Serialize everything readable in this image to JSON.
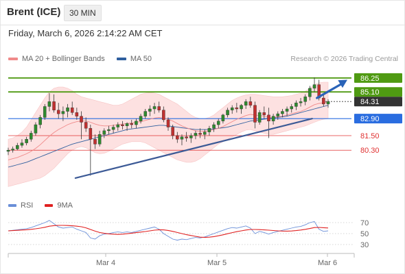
{
  "header": {
    "instrument": "Brent (ICE)",
    "timeframe": "30 MIN"
  },
  "timestamp": "Friday, March 6, 2026 2:14:22 AM CET",
  "legend": {
    "main": [
      {
        "label": "MA 20 + Bollinger Bands",
        "color": "#f08a8a"
      },
      {
        "label": "MA 50",
        "color": "#2e5e9e"
      }
    ],
    "rsi": [
      {
        "label": "RSI",
        "color": "#6a8fd8"
      },
      {
        "label": "9MA",
        "color": "#e02020"
      }
    ]
  },
  "credit": "Research © 2026 Trading Central",
  "chart_data": {
    "type": "candlestick",
    "y_range": [
      76.7,
      87.2
    ],
    "x_labels": [
      "Mar 4",
      "Mar 5",
      "Mar 6"
    ],
    "levels": [
      {
        "label": "86.25",
        "value": 86.25,
        "kind": "resistance",
        "color": "#4f9a12"
      },
      {
        "label": "85.10",
        "value": 85.1,
        "kind": "resistance",
        "color": "#4f9a12"
      },
      {
        "label": "84.31",
        "value": 84.31,
        "kind": "last",
        "color": "#333333"
      },
      {
        "label": "82.90",
        "value": 82.9,
        "kind": "pivot",
        "color": "#2a6de0"
      },
      {
        "label": "81.50",
        "value": 81.5,
        "kind": "support",
        "color": "#e03030"
      },
      {
        "label": "80.30",
        "value": 80.3,
        "kind": "support",
        "color": "#e03030"
      }
    ],
    "candles": [
      [
        80.2,
        80.5,
        79.9,
        80.3
      ],
      [
        80.3,
        80.6,
        80.1,
        80.4
      ],
      [
        80.4,
        80.9,
        80.3,
        80.7
      ],
      [
        80.7,
        81.2,
        80.5,
        80.9
      ],
      [
        80.9,
        81.4,
        80.7,
        81.2
      ],
      [
        81.2,
        81.9,
        81.0,
        81.7
      ],
      [
        81.7,
        82.6,
        81.5,
        82.4
      ],
      [
        82.4,
        83.2,
        82.1,
        83.0
      ],
      [
        83.0,
        84.1,
        82.8,
        83.9
      ],
      [
        83.9,
        85.0,
        83.5,
        84.3
      ],
      [
        84.3,
        84.9,
        83.4,
        83.6
      ],
      [
        83.6,
        84.2,
        82.9,
        83.3
      ],
      [
        83.3,
        83.9,
        82.7,
        83.5
      ],
      [
        83.5,
        84.1,
        83.0,
        83.8
      ],
      [
        83.8,
        84.3,
        83.2,
        83.4
      ],
      [
        83.4,
        83.8,
        82.8,
        83.1
      ],
      [
        83.1,
        83.5,
        81.2,
        82.6
      ],
      [
        82.6,
        83.0,
        81.8,
        82.1
      ],
      [
        82.1,
        82.4,
        78.2,
        81.2
      ],
      [
        81.2,
        81.6,
        80.4,
        80.8
      ],
      [
        80.8,
        81.9,
        80.6,
        81.6
      ],
      [
        81.6,
        82.1,
        81.3,
        81.9
      ],
      [
        81.9,
        82.3,
        81.6,
        82.0
      ],
      [
        82.0,
        82.4,
        81.7,
        82.2
      ],
      [
        82.2,
        82.6,
        81.9,
        82.4
      ],
      [
        82.4,
        82.7,
        82.0,
        82.3
      ],
      [
        82.3,
        82.6,
        81.9,
        82.5
      ],
      [
        82.5,
        82.8,
        82.1,
        82.4
      ],
      [
        82.4,
        82.9,
        82.1,
        82.7
      ],
      [
        82.7,
        83.3,
        82.5,
        83.1
      ],
      [
        83.1,
        83.7,
        82.9,
        83.5
      ],
      [
        83.5,
        84.0,
        83.1,
        83.7
      ],
      [
        83.7,
        84.2,
        83.3,
        83.9
      ],
      [
        83.9,
        84.3,
        83.4,
        83.6
      ],
      [
        83.6,
        83.9,
        82.6,
        82.8
      ],
      [
        82.8,
        83.0,
        81.9,
        82.2
      ],
      [
        82.2,
        82.4,
        81.2,
        81.5
      ],
      [
        81.5,
        81.8,
        80.9,
        81.2
      ],
      [
        81.2,
        81.6,
        80.7,
        81.4
      ],
      [
        81.4,
        81.8,
        81.0,
        81.3
      ],
      [
        81.3,
        81.7,
        80.9,
        81.5
      ],
      [
        81.5,
        81.9,
        81.2,
        81.7
      ],
      [
        81.7,
        82.1,
        81.3,
        81.6
      ],
      [
        81.6,
        82.0,
        81.2,
        81.8
      ],
      [
        81.8,
        82.3,
        81.5,
        82.1
      ],
      [
        82.1,
        82.6,
        81.8,
        82.4
      ],
      [
        82.4,
        82.9,
        82.1,
        82.7
      ],
      [
        82.7,
        83.3,
        82.5,
        83.2
      ],
      [
        83.2,
        83.8,
        83.0,
        83.6
      ],
      [
        83.6,
        84.0,
        83.3,
        83.8
      ],
      [
        83.8,
        84.2,
        83.4,
        83.7
      ],
      [
        83.7,
        84.1,
        83.3,
        84.0
      ],
      [
        84.0,
        84.5,
        83.7,
        84.3
      ],
      [
        84.3,
        84.7,
        83.8,
        84.0
      ],
      [
        84.0,
        84.3,
        82.1,
        82.6
      ],
      [
        82.6,
        83.6,
        82.4,
        83.4
      ],
      [
        83.4,
        83.9,
        82.9,
        83.2
      ],
      [
        83.2,
        83.8,
        81.3,
        82.7
      ],
      [
        82.7,
        83.3,
        82.4,
        83.1
      ],
      [
        83.1,
        83.5,
        82.8,
        83.3
      ],
      [
        83.3,
        83.7,
        83.0,
        83.5
      ],
      [
        83.5,
        83.9,
        83.1,
        83.7
      ],
      [
        83.7,
        84.1,
        83.4,
        83.9
      ],
      [
        83.9,
        84.4,
        83.6,
        84.2
      ],
      [
        84.2,
        84.6,
        83.9,
        84.3
      ],
      [
        84.3,
        84.9,
        84.0,
        84.7
      ],
      [
        84.7,
        85.6,
        84.4,
        85.4
      ],
      [
        85.4,
        86.3,
        85.1,
        85.7
      ],
      [
        85.7,
        86.1,
        84.4,
        84.6
      ],
      [
        84.6,
        84.9,
        83.9,
        84.1
      ],
      [
        84.1,
        84.5,
        83.8,
        84.31
      ]
    ],
    "ma20": [
      79.5,
      79.6,
      79.7,
      79.85,
      80.0,
      80.2,
      80.45,
      80.75,
      81.1,
      81.45,
      81.75,
      82.0,
      82.2,
      82.4,
      82.55,
      82.65,
      82.7,
      82.7,
      82.6,
      82.45,
      82.35,
      82.3,
      82.3,
      82.35,
      82.4,
      82.45,
      82.5,
      82.55,
      82.6,
      82.65,
      82.75,
      82.85,
      82.95,
      83.0,
      82.95,
      82.85,
      82.7,
      82.5,
      82.3,
      82.15,
      82.0,
      81.9,
      81.85,
      81.85,
      81.9,
      82.0,
      82.1,
      82.25,
      82.45,
      82.65,
      82.85,
      83.0,
      83.15,
      83.25,
      83.2,
      83.15,
      83.1,
      83.0,
      83.0,
      83.05,
      83.1,
      83.2,
      83.3,
      83.4,
      83.5,
      83.65,
      83.85,
      84.05,
      84.15,
      84.2,
      84.25
    ],
    "bb_upper": [
      81.2,
      81.3,
      81.5,
      81.8,
      82.2,
      82.8,
      83.4,
      84.0,
      84.6,
      85.1,
      85.4,
      85.5,
      85.5,
      85.4,
      85.2,
      84.9,
      84.7,
      84.6,
      84.5,
      84.4,
      84.3,
      84.2,
      84.1,
      84.0,
      84.0,
      84.1,
      84.3,
      84.5,
      84.7,
      84.9,
      85.0,
      85.05,
      85.0,
      84.9,
      84.7,
      84.5,
      84.3,
      84.1,
      83.8,
      83.5,
      83.2,
      83.0,
      82.9,
      82.9,
      83.0,
      83.2,
      83.5,
      83.8,
      84.1,
      84.4,
      84.6,
      84.75,
      84.85,
      84.9,
      84.9,
      84.85,
      84.8,
      84.75,
      84.7,
      84.7,
      84.7,
      84.75,
      84.8,
      84.9,
      85.0,
      85.15,
      85.4,
      85.7,
      85.85,
      85.9,
      85.9
    ],
    "bb_lower": [
      77.3,
      77.4,
      77.5,
      77.6,
      77.7,
      77.8,
      77.9,
      78.0,
      78.2,
      78.5,
      78.8,
      79.2,
      79.6,
      80.0,
      80.3,
      80.5,
      80.6,
      80.5,
      80.3,
      80.1,
      80.0,
      80.05,
      80.2,
      80.4,
      80.6,
      80.8,
      80.9,
      81.0,
      81.0,
      81.0,
      80.9,
      80.7,
      80.5,
      80.3,
      80.1,
      79.9,
      79.7,
      79.5,
      79.4,
      79.3,
      79.3,
      79.4,
      79.6,
      79.9,
      80.2,
      80.5,
      80.8,
      81.0,
      81.2,
      81.4,
      81.6,
      81.8,
      81.95,
      82.0,
      81.9,
      81.8,
      81.7,
      81.6,
      81.6,
      81.7,
      81.8,
      81.9,
      82.0,
      82.1,
      82.2,
      82.3,
      82.45,
      82.6,
      82.75,
      82.85,
      82.9
    ],
    "ma50": [
      78.9,
      79.0,
      79.1,
      79.2,
      79.3,
      79.45,
      79.6,
      79.75,
      79.9,
      80.05,
      80.2,
      80.35,
      80.5,
      80.65,
      80.8,
      80.9,
      81.0,
      81.1,
      81.2,
      81.3,
      81.4,
      81.5,
      81.6,
      81.7,
      81.8,
      81.9,
      82.0,
      82.05,
      82.1,
      82.15,
      82.2,
      82.25,
      82.3,
      82.35,
      82.35,
      82.3,
      82.25,
      82.2,
      82.15,
      82.1,
      82.05,
      82.0,
      82.0,
      82.0,
      82.0,
      82.05,
      82.1,
      82.15,
      82.2,
      82.3,
      82.4,
      82.5,
      82.6,
      82.7,
      82.75,
      82.8,
      82.85,
      82.9,
      82.95,
      83.0,
      83.05,
      83.1,
      83.2,
      83.3,
      83.4,
      83.5,
      83.6,
      83.7,
      83.8,
      83.9,
      84.0
    ],
    "trendline": {
      "from": [
        0.21,
        78.0
      ],
      "to": [
        0.95,
        82.9
      ]
    },
    "arrow": {
      "from": [
        0.965,
        84.6
      ],
      "to": [
        1.06,
        86.1
      ]
    },
    "rsi": {
      "ticks": [
        70,
        50,
        30
      ],
      "range": [
        20,
        85
      ],
      "rsi": [
        55,
        56,
        57,
        58,
        59,
        61,
        64,
        67,
        70,
        74,
        68,
        62,
        60,
        61,
        62,
        58,
        55,
        52,
        42,
        40,
        46,
        49,
        50,
        52,
        53,
        52,
        53,
        52,
        54,
        56,
        58,
        60,
        62,
        58,
        50,
        45,
        40,
        38,
        40,
        39,
        41,
        43,
        42,
        44,
        47,
        50,
        53,
        56,
        59,
        61,
        60,
        62,
        64,
        60,
        50,
        54,
        52,
        49,
        52,
        54,
        56,
        58,
        60,
        62,
        63,
        66,
        70,
        72,
        58,
        54,
        55
      ],
      "ma9": [
        55,
        55.5,
        56,
        56.5,
        57,
        57.8,
        58.8,
        60,
        61.5,
        63.5,
        64.5,
        65,
        65,
        64.8,
        64.3,
        63.5,
        62.5,
        60.5,
        57.5,
        54.5,
        52,
        50.5,
        49.5,
        49,
        48.5,
        49,
        49.8,
        50.8,
        51.8,
        52.8,
        53.8,
        55,
        56.3,
        57,
        56.8,
        55.8,
        54,
        52,
        50,
        48,
        46.5,
        45,
        43.5,
        43,
        43.5,
        44.5,
        46,
        47.8,
        49.8,
        51.8,
        53.5,
        55,
        56.5,
        57.5,
        57.5,
        57.2,
        56.8,
        56.2,
        55.6,
        55,
        54.6,
        54.5,
        54.8,
        55.5,
        56.5,
        57.8,
        59.3,
        61,
        61.3,
        60.8,
        60.2
      ]
    }
  }
}
